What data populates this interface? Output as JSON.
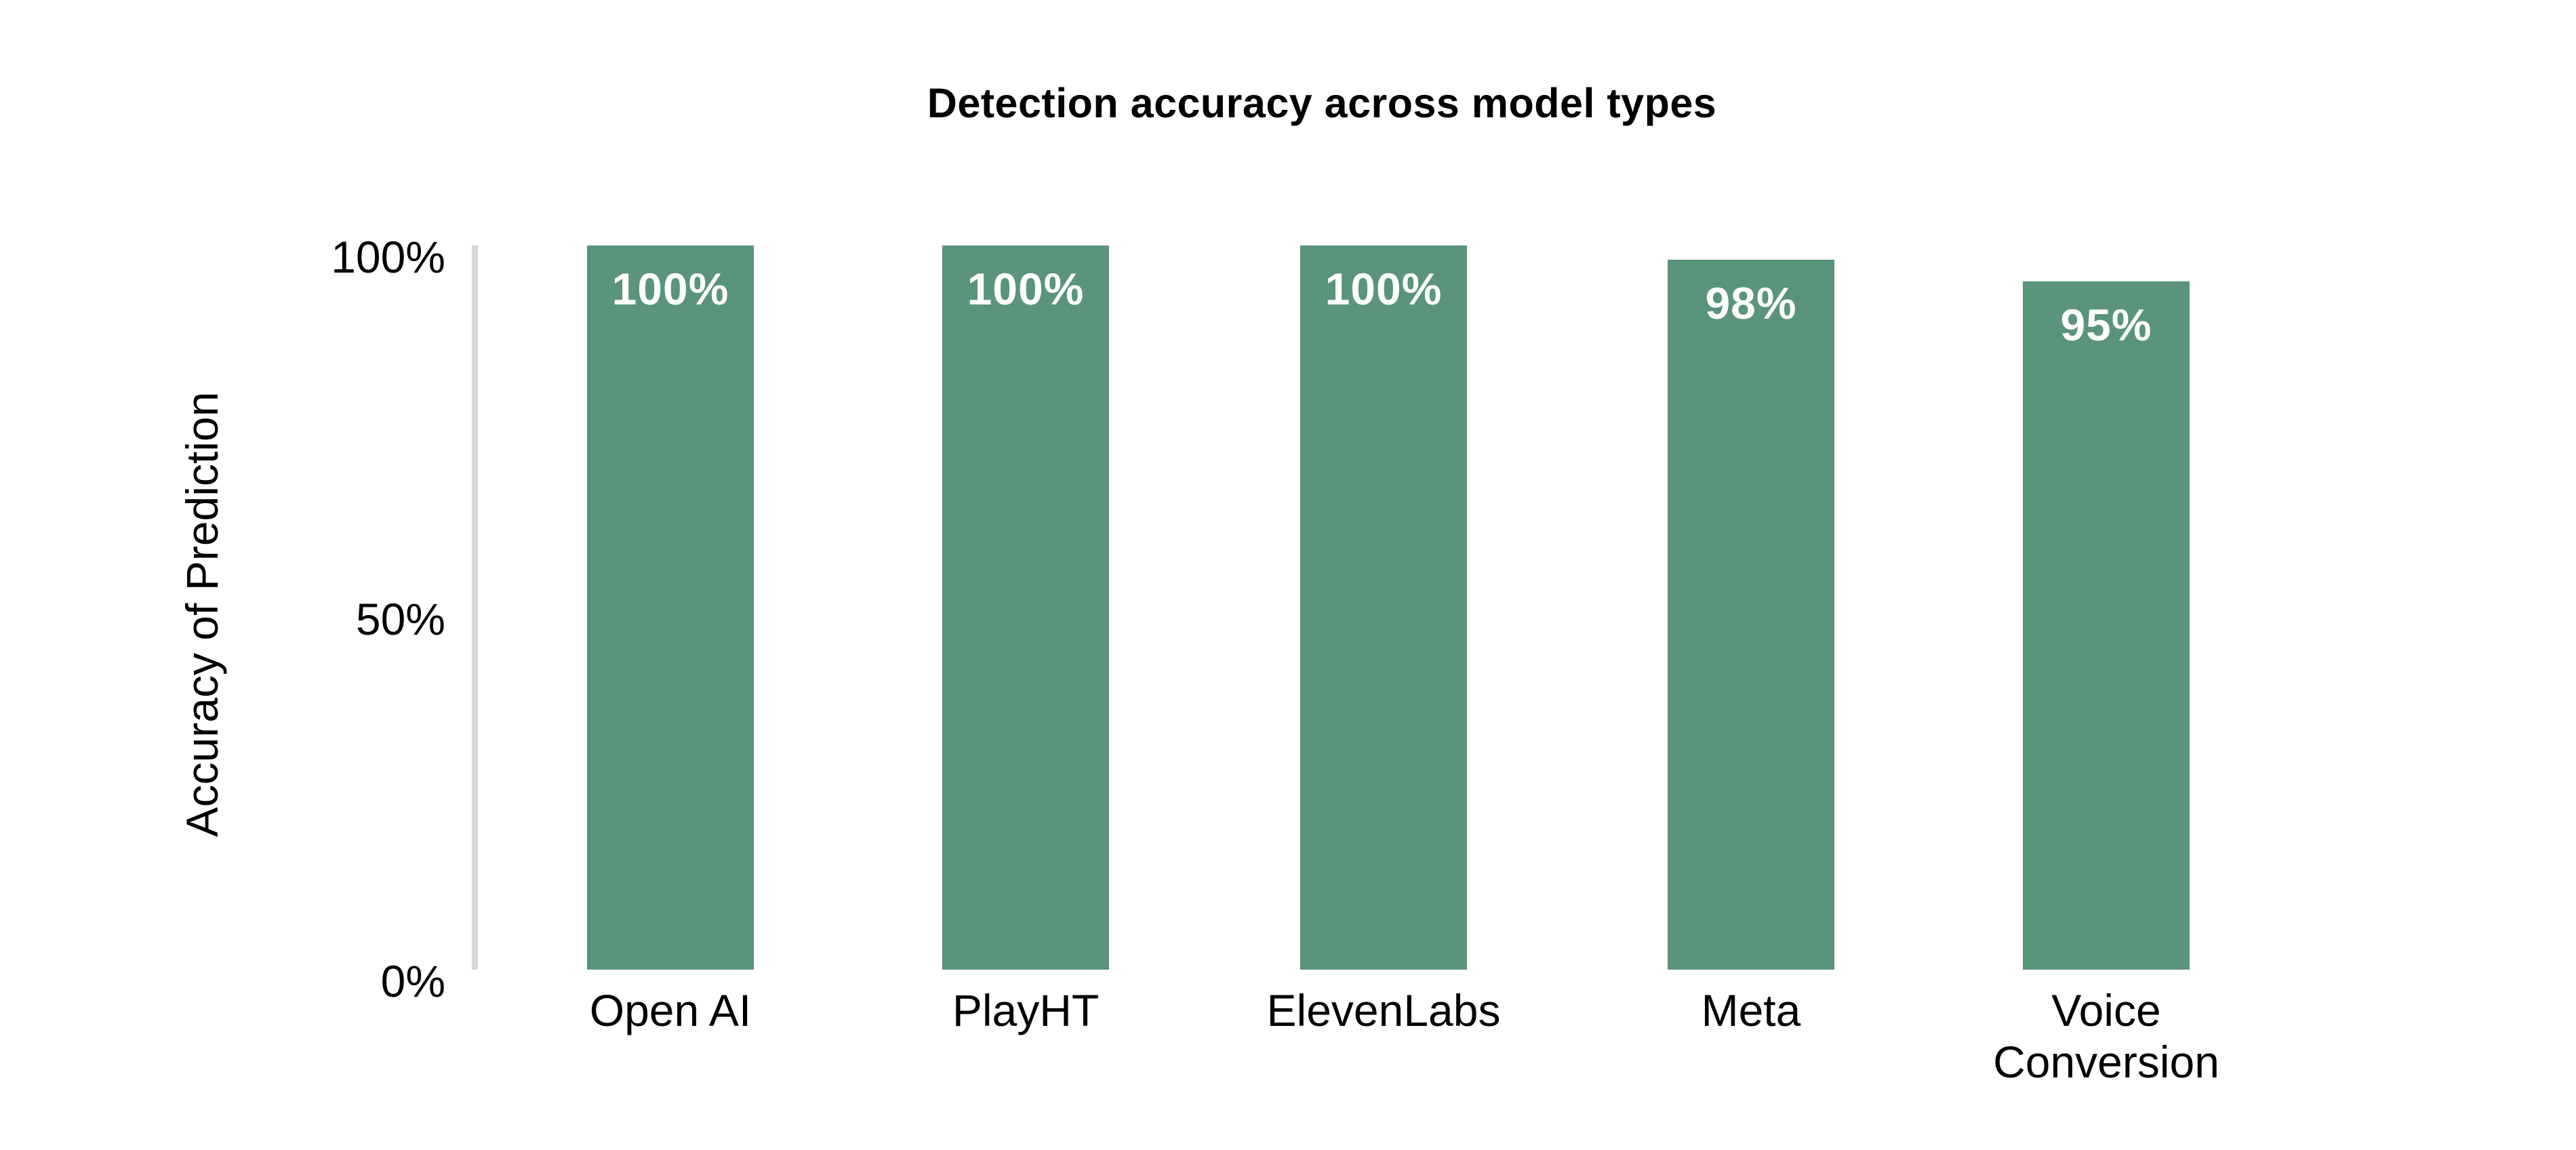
{
  "chart_data": {
    "type": "bar",
    "title": "Detection accuracy across model types",
    "xlabel": "",
    "ylabel": "Accuracy of Prediction",
    "categories": [
      "Open AI",
      "PlayHT",
      "ElevenLabs",
      "Meta",
      "Voice Conversion"
    ],
    "values": [
      100,
      100,
      100,
      98,
      95
    ],
    "value_labels": [
      "100%",
      "100%",
      "100%",
      "98%",
      "95%"
    ],
    "yticks": [
      {
        "label": "100%",
        "value": 100
      },
      {
        "label": "50%",
        "value": 50
      },
      {
        "label": "0%",
        "value": 0
      }
    ],
    "ylim": [
      0,
      100
    ],
    "grid": false,
    "legend_position": "none",
    "colors": {
      "bar": "#5A947A",
      "value_label": "#FFFFFF",
      "axis_line": "#D6D6D6",
      "text": "#000000",
      "background": "#FFFFFF"
    }
  }
}
